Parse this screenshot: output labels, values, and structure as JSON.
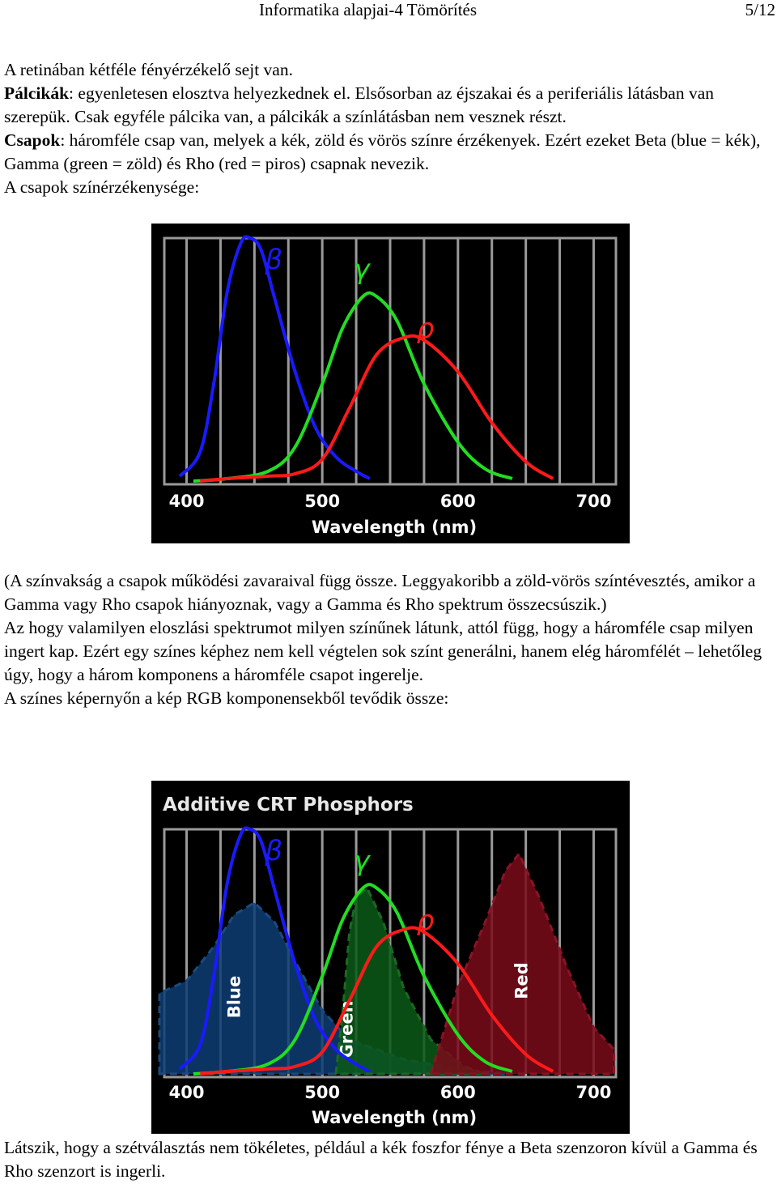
{
  "header": {
    "title": "Informatika alapjai-4 Tömörítés",
    "page": "5/12"
  },
  "intro": {
    "line1": "A retinában kétféle fényérzékelő sejt van.",
    "rods_term": "Pálcikák",
    "rods_text": ": egyenletesen elosztva helyezkednek el. Elsősorban az éjszakai és a periferiális látásban van szerepük. Csak egyféle pálcika van, a pálcikák a színlátásban nem vesznek részt.",
    "cones_term": "Csapok",
    "cones_text": ": háromféle csap van, melyek a kék, zöld és vörös színre érzékenyek. Ezért ezeket Beta (blue = kék), Gamma (green = zöld) és Rho (red = piros) csapnak nevezik.",
    "sensitivity_intro": "A csapok színérzékenysége:"
  },
  "middle": {
    "p1": "(A színvakság a csapok működési zavaraival függ össze. Leggyakoribb a zöld-vörös színtévesztés, amikor a Gamma vagy Rho csapok hiányoznak, vagy a Gamma és Rho spektrum összecsúszik.)",
    "p2": "Az hogy valamilyen eloszlási spektrumot milyen színűnek látunk, attól függ, hogy a háromféle csap milyen ingert kap. Ezért egy színes képhez nem kell végtelen sok színt generálni, hanem elég háromfélét – lehetőleg úgy, hogy a három komponens a háromféle csapot ingerelje.",
    "p3": "A színes képernyőn a kép RGB komponensekből tevődik össze:"
  },
  "outro": {
    "p1": "Látszik, hogy a szétválasztás nem tökéletes, például a kék foszfor fénye a Beta szenzoron kívül a Gamma és Rho szenzort is ingerli."
  },
  "colors": {
    "beta": "#1a1aff",
    "gamma": "#22dd22",
    "rho": "#ff1a1a",
    "phosphor_blue": "#0d3d73",
    "phosphor_green": "#0c5a18",
    "phosphor_red": "#7a0a1a"
  },
  "chart_data": [
    {
      "type": "line",
      "title": "",
      "xlabel": "Wavelength (nm)",
      "ylabel": "",
      "xlim": [
        380,
        720
      ],
      "ylim": [
        0,
        1
      ],
      "x_ticks": [
        "400",
        "500",
        "600",
        "700"
      ],
      "grid": true,
      "series": [
        {
          "name": "β",
          "peak_nm": 445,
          "values_note": "",
          "points": [
            [
              395,
              0.02
            ],
            [
              410,
              0.12
            ],
            [
              420,
              0.4
            ],
            [
              430,
              0.78
            ],
            [
              440,
              0.98
            ],
            [
              447,
              1.0
            ],
            [
              455,
              0.95
            ],
            [
              465,
              0.75
            ],
            [
              480,
              0.45
            ],
            [
              495,
              0.22
            ],
            [
              510,
              0.1
            ],
            [
              525,
              0.04
            ],
            [
              535,
              0.01
            ]
          ]
        },
        {
          "name": "γ",
          "peak_nm": 535,
          "points": [
            [
              405,
              0.0
            ],
            [
              430,
              0.01
            ],
            [
              460,
              0.04
            ],
            [
              480,
              0.14
            ],
            [
              500,
              0.4
            ],
            [
              515,
              0.63
            ],
            [
              530,
              0.76
            ],
            [
              540,
              0.76
            ],
            [
              555,
              0.66
            ],
            [
              575,
              0.4
            ],
            [
              600,
              0.16
            ],
            [
              620,
              0.05
            ],
            [
              640,
              0.01
            ]
          ]
        },
        {
          "name": "ρ",
          "peak_nm": 565,
          "points": [
            [
              410,
              0.0
            ],
            [
              430,
              0.01
            ],
            [
              460,
              0.02
            ],
            [
              480,
              0.03
            ],
            [
              500,
              0.09
            ],
            [
              520,
              0.3
            ],
            [
              540,
              0.52
            ],
            [
              560,
              0.59
            ],
            [
              575,
              0.58
            ],
            [
              600,
              0.45
            ],
            [
              625,
              0.24
            ],
            [
              650,
              0.08
            ],
            [
              670,
              0.01
            ]
          ]
        }
      ]
    },
    {
      "type": "area",
      "title": "Additive CRT Phosphors",
      "xlabel": "Wavelength (nm)",
      "ylabel": "",
      "xlim": [
        380,
        720
      ],
      "ylim": [
        0,
        1
      ],
      "x_ticks": [
        "400",
        "500",
        "600",
        "700"
      ],
      "grid": true,
      "phosphors": [
        {
          "name": "Blue",
          "points": [
            [
              380,
              0.33
            ],
            [
              400,
              0.38
            ],
            [
              420,
              0.52
            ],
            [
              435,
              0.65
            ],
            [
              450,
              0.7
            ],
            [
              465,
              0.62
            ],
            [
              480,
              0.46
            ],
            [
              500,
              0.26
            ],
            [
              520,
              0.14
            ],
            [
              560,
              0.06
            ],
            [
              600,
              0.02
            ],
            [
              640,
              0.0
            ]
          ]
        },
        {
          "name": "Green",
          "points": [
            [
              510,
              0.0
            ],
            [
              515,
              0.25
            ],
            [
              520,
              0.58
            ],
            [
              525,
              0.72
            ],
            [
              533,
              0.76
            ],
            [
              545,
              0.62
            ],
            [
              560,
              0.35
            ],
            [
              580,
              0.14
            ],
            [
              605,
              0.03
            ],
            [
              620,
              0.0
            ]
          ]
        },
        {
          "name": "Red",
          "points": [
            [
              580,
              0.0
            ],
            [
              600,
              0.36
            ],
            [
              620,
              0.62
            ],
            [
              635,
              0.83
            ],
            [
              645,
              0.9
            ],
            [
              660,
              0.72
            ],
            [
              680,
              0.44
            ],
            [
              700,
              0.19
            ],
            [
              715,
              0.1
            ]
          ]
        }
      ],
      "series": [
        {
          "name": "β",
          "points": [
            [
              395,
              0.02
            ],
            [
              410,
              0.12
            ],
            [
              420,
              0.4
            ],
            [
              430,
              0.78
            ],
            [
              440,
              0.98
            ],
            [
              447,
              1.0
            ],
            [
              455,
              0.95
            ],
            [
              465,
              0.75
            ],
            [
              480,
              0.45
            ],
            [
              495,
              0.22
            ],
            [
              510,
              0.1
            ],
            [
              525,
              0.04
            ],
            [
              535,
              0.01
            ]
          ]
        },
        {
          "name": "γ",
          "points": [
            [
              405,
              0.0
            ],
            [
              430,
              0.01
            ],
            [
              460,
              0.04
            ],
            [
              480,
              0.14
            ],
            [
              500,
              0.4
            ],
            [
              515,
              0.63
            ],
            [
              530,
              0.76
            ],
            [
              540,
              0.76
            ],
            [
              555,
              0.66
            ],
            [
              575,
              0.4
            ],
            [
              600,
              0.16
            ],
            [
              620,
              0.05
            ],
            [
              640,
              0.01
            ]
          ]
        },
        {
          "name": "ρ",
          "points": [
            [
              410,
              0.0
            ],
            [
              430,
              0.01
            ],
            [
              460,
              0.02
            ],
            [
              480,
              0.03
            ],
            [
              500,
              0.09
            ],
            [
              520,
              0.3
            ],
            [
              540,
              0.52
            ],
            [
              560,
              0.59
            ],
            [
              575,
              0.58
            ],
            [
              600,
              0.45
            ],
            [
              625,
              0.24
            ],
            [
              650,
              0.08
            ],
            [
              670,
              0.01
            ]
          ]
        }
      ]
    }
  ]
}
